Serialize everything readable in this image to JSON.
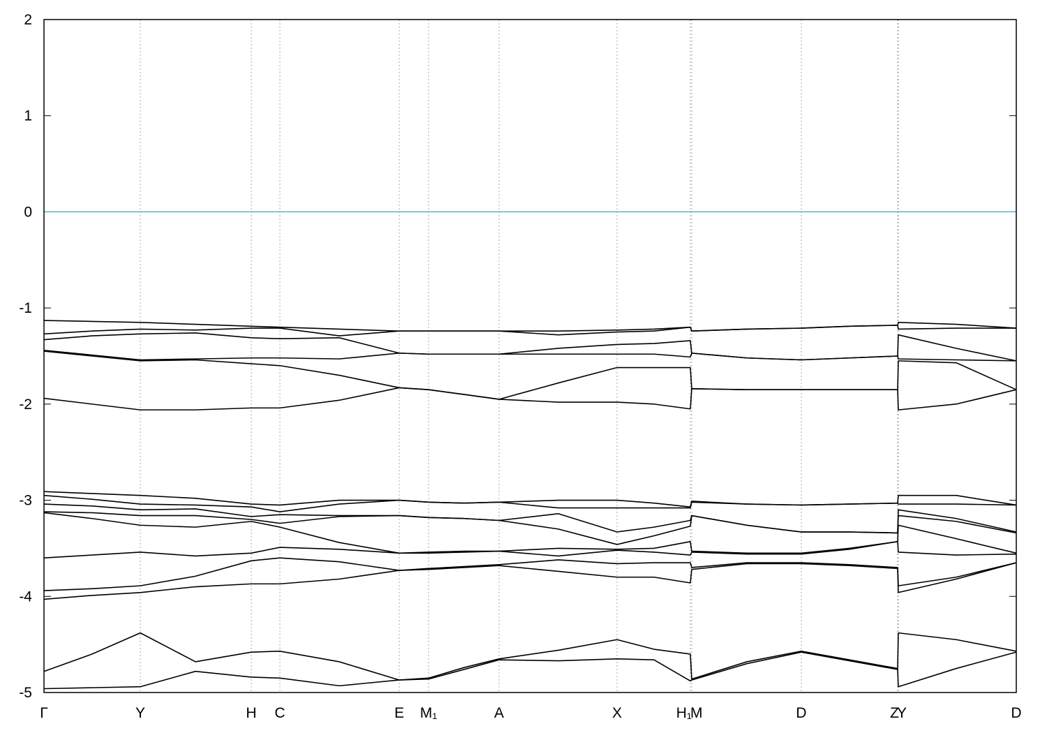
{
  "chart_data": {
    "type": "line",
    "x": [
      0,
      0.69,
      1.38,
      2.17,
      2.97,
      3.38,
      4.23,
      5.09,
      5.51,
      6.02,
      6.52,
      7.37,
      8.21,
      8.74,
      9.26,
      9.28,
      10.07,
      10.85,
      11.54,
      12.23,
      12.24,
      13.07,
      13.93
    ],
    "xlim": [
      0,
      13.93
    ],
    "xticks": [
      {
        "value": 0,
        "label": "Γ"
      },
      {
        "value": 1.38,
        "label": "Y"
      },
      {
        "value": 2.97,
        "label": "H"
      },
      {
        "value": 3.38,
        "label": "C"
      },
      {
        "value": 5.09,
        "label": "E"
      },
      {
        "value": 5.51,
        "label": "M₁"
      },
      {
        "value": 6.52,
        "label": "A"
      },
      {
        "value": 8.21,
        "label": "X"
      },
      {
        "value": 9.26,
        "label": "H₁"
      },
      {
        "value": 9.28,
        "label": "M"
      },
      {
        "value": 10.85,
        "label": "D"
      },
      {
        "value": 12.23,
        "label": "Z"
      },
      {
        "value": 12.24,
        "label": "Y"
      },
      {
        "value": 13.93,
        "label": "D"
      }
    ],
    "ylim": [
      -5,
      2
    ],
    "yticks": [
      -5,
      -4,
      -3,
      -2,
      -1,
      0,
      1,
      2
    ],
    "xgrid": true,
    "line_color": "#000000",
    "reference_line": {
      "value": 0,
      "color": "#56b4c9"
    },
    "series": [
      {
        "values": [
          -1.13,
          -1.14,
          -1.15,
          -1.17,
          -1.19,
          -1.2,
          -1.22,
          -1.24,
          -1.24,
          -1.24,
          -1.24,
          -1.24,
          -1.23,
          -1.22,
          -1.2,
          -1.24,
          -1.22,
          -1.21,
          -1.19,
          -1.18,
          -1.15,
          -1.17,
          -1.21
        ]
      },
      {
        "values": [
          -1.27,
          -1.24,
          -1.22,
          -1.23,
          -1.21,
          -1.21,
          -1.29,
          -1.24,
          -1.24,
          -1.24,
          -1.24,
          -1.28,
          -1.25,
          -1.24,
          -1.2,
          -1.24,
          -1.22,
          -1.21,
          -1.19,
          -1.18,
          -1.22,
          -1.21,
          -1.21
        ]
      },
      {
        "values": [
          -1.33,
          -1.29,
          -1.27,
          -1.26,
          -1.31,
          -1.32,
          -1.31,
          -1.47,
          -1.48,
          -1.48,
          -1.48,
          -1.42,
          -1.38,
          -1.37,
          -1.34,
          -1.47,
          -1.52,
          -1.54,
          -1.52,
          -1.5,
          -1.28,
          -1.42,
          -1.55
        ]
      },
      {
        "values": [
          -1.44,
          -1.49,
          -1.54,
          -1.53,
          -1.52,
          -1.52,
          -1.53,
          -1.47,
          -1.48,
          -1.48,
          -1.48,
          -1.48,
          -1.48,
          -1.48,
          -1.51,
          -1.47,
          -1.52,
          -1.54,
          -1.52,
          -1.5,
          -1.53,
          -1.54,
          -1.55
        ]
      },
      {
        "values": [
          -1.45,
          -1.5,
          -1.55,
          -1.54,
          -1.58,
          -1.6,
          -1.7,
          -1.83,
          -1.85,
          -1.9,
          -1.95,
          -1.78,
          -1.62,
          -1.62,
          -1.62,
          -1.84,
          -1.85,
          -1.85,
          -1.85,
          -1.85,
          -1.55,
          -1.57,
          -1.85
        ]
      },
      {
        "values": [
          -1.94,
          -2.0,
          -2.06,
          -2.06,
          -2.04,
          -2.04,
          -1.96,
          -1.83,
          -1.85,
          -1.9,
          -1.95,
          -1.98,
          -1.98,
          -2.0,
          -2.05,
          -1.84,
          -1.85,
          -1.85,
          -1.85,
          -1.85,
          -2.06,
          -2.0,
          -1.85
        ]
      },
      {
        "values": [
          -2.91,
          -2.93,
          -2.95,
          -2.98,
          -3.04,
          -3.05,
          -3.0,
          -3.0,
          -3.02,
          -3.03,
          -3.02,
          -3.0,
          -3.0,
          -3.03,
          -3.07,
          -3.01,
          -3.04,
          -3.05,
          -3.04,
          -3.03,
          -2.95,
          -2.95,
          -3.05
        ]
      },
      {
        "values": [
          -2.95,
          -2.99,
          -3.04,
          -3.05,
          -3.07,
          -3.12,
          -3.04,
          -3.0,
          -3.02,
          -3.03,
          -3.02,
          -3.08,
          -3.08,
          -3.08,
          -3.08,
          -3.02,
          -3.04,
          -3.05,
          -3.04,
          -3.03,
          -3.04,
          -3.04,
          -3.05
        ]
      },
      {
        "values": [
          -3.04,
          -3.06,
          -3.1,
          -3.09,
          -3.17,
          -3.15,
          -3.16,
          -3.16,
          -3.18,
          -3.19,
          -3.21,
          -3.14,
          -3.33,
          -3.28,
          -3.21,
          -3.16,
          -3.26,
          -3.33,
          -3.33,
          -3.34,
          -3.1,
          -3.19,
          -3.33
        ]
      },
      {
        "values": [
          -3.12,
          -3.13,
          -3.16,
          -3.16,
          -3.2,
          -3.24,
          -3.17,
          -3.16,
          -3.18,
          -3.19,
          -3.21,
          -3.3,
          -3.46,
          -3.37,
          -3.27,
          -3.16,
          -3.26,
          -3.33,
          -3.33,
          -3.34,
          -3.16,
          -3.22,
          -3.34
        ]
      },
      {
        "values": [
          -3.13,
          -3.19,
          -3.26,
          -3.28,
          -3.22,
          -3.28,
          -3.44,
          -3.55,
          -3.54,
          -3.53,
          -3.53,
          -3.5,
          -3.51,
          -3.5,
          -3.43,
          -3.53,
          -3.55,
          -3.55,
          -3.5,
          -3.43,
          -3.26,
          -3.4,
          -3.55
        ]
      },
      {
        "values": [
          -3.6,
          -3.57,
          -3.54,
          -3.58,
          -3.55,
          -3.49,
          -3.51,
          -3.55,
          -3.55,
          -3.54,
          -3.53,
          -3.58,
          -3.52,
          -3.54,
          -3.57,
          -3.54,
          -3.56,
          -3.56,
          -3.51,
          -3.43,
          -3.54,
          -3.57,
          -3.56
        ]
      },
      {
        "values": [
          -3.94,
          -3.92,
          -3.89,
          -3.79,
          -3.63,
          -3.6,
          -3.64,
          -3.73,
          -3.71,
          -3.69,
          -3.67,
          -3.62,
          -3.66,
          -3.65,
          -3.65,
          -3.7,
          -3.65,
          -3.65,
          -3.67,
          -3.7,
          -3.89,
          -3.8,
          -3.65
        ]
      },
      {
        "values": [
          -4.03,
          -3.99,
          -3.96,
          -3.9,
          -3.87,
          -3.87,
          -3.82,
          -3.73,
          -3.72,
          -3.7,
          -3.68,
          -3.74,
          -3.8,
          -3.8,
          -3.86,
          -3.72,
          -3.66,
          -3.66,
          -3.68,
          -3.71,
          -3.96,
          -3.82,
          -3.65
        ]
      },
      {
        "values": [
          -4.78,
          -4.6,
          -4.38,
          -4.68,
          -4.58,
          -4.57,
          -4.68,
          -4.87,
          -4.85,
          -4.74,
          -4.65,
          -4.56,
          -4.45,
          -4.55,
          -4.6,
          -4.86,
          -4.68,
          -4.57,
          -4.66,
          -4.75,
          -4.38,
          -4.45,
          -4.57
        ]
      },
      {
        "values": [
          -4.96,
          -4.95,
          -4.94,
          -4.78,
          -4.84,
          -4.85,
          -4.93,
          -4.87,
          -4.86,
          -4.76,
          -4.66,
          -4.67,
          -4.65,
          -4.66,
          -4.88,
          -4.87,
          -4.7,
          -4.58,
          -4.67,
          -4.76,
          -4.94,
          -4.75,
          -4.58
        ]
      }
    ]
  }
}
